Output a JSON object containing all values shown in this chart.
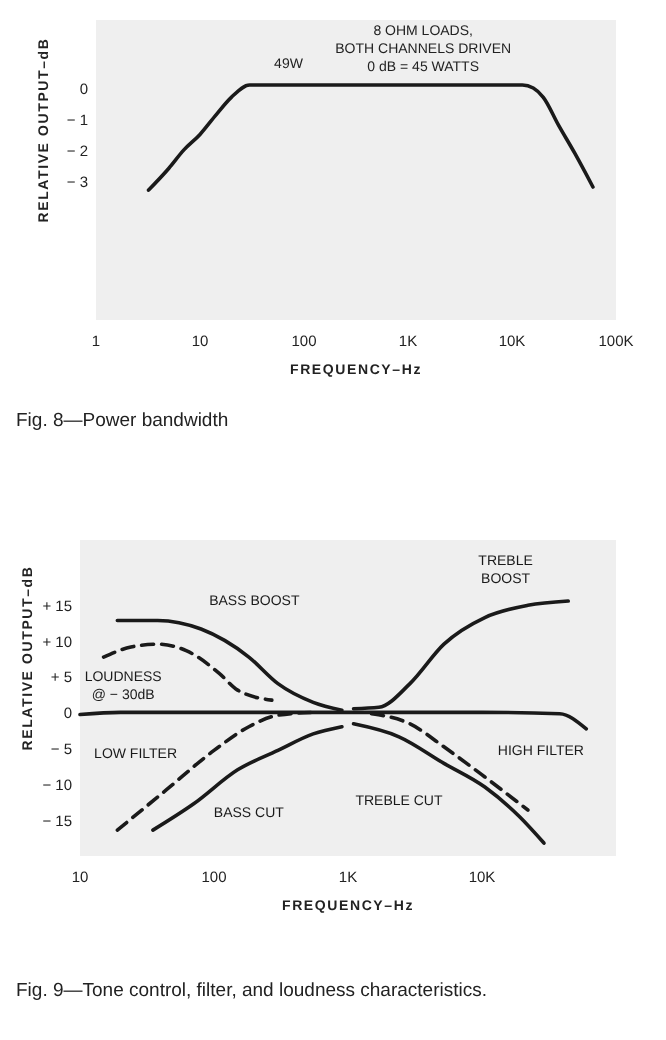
{
  "chart_data": [
    {
      "type": "line",
      "title": "Fig. 8—Power bandwidth",
      "xlabel": "FREQUENCY–Hz",
      "ylabel": "RELATIVE OUTPUT–dB",
      "log": "x",
      "xlim": [
        1,
        100000
      ],
      "ylim": [
        -7.5,
        2.2
      ],
      "xticks": [
        1,
        10,
        100,
        {
          "value": 1000,
          "label": "1K"
        },
        {
          "value": 10000,
          "label": "10K"
        },
        {
          "value": 100000,
          "label": "100K"
        }
      ],
      "yticks": [
        {
          "value": 0,
          "label": "0"
        },
        {
          "value": -1,
          "label": "− 1"
        },
        {
          "value": -2,
          "label": "− 2"
        },
        {
          "value": -3,
          "label": "− 3"
        }
      ],
      "series": [
        {
          "color": "#1a1a1a",
          "line_style": "solid",
          "x": [
            3.2,
            5,
            7,
            10,
            14,
            20,
            30,
            50,
            100,
            1000,
            10000,
            12600,
            16000,
            20000,
            28000,
            40000,
            60000
          ],
          "values": [
            -3.3,
            -2.6,
            -2.0,
            -1.5,
            -0.9,
            -0.3,
            0.1,
            0.1,
            0.1,
            0.1,
            0.1,
            0.1,
            0,
            -0.3,
            -1.2,
            -2.1,
            -3.2
          ]
        }
      ],
      "annotations": [
        "49W",
        "8 OHM LOADS,\nBOTH CHANNELS DRIVEN\n0 dB = 45 WATTS"
      ]
    },
    {
      "type": "line",
      "title": "Fig. 9—Tone control, filter, and loudness characteristics.",
      "xlabel": "FREQUENCY–Hz",
      "ylabel": "RELATIVE OUTPUT–dB",
      "log": "x",
      "xlim": [
        10,
        100000
      ],
      "ylim": [
        -20,
        24
      ],
      "xticks": [
        10,
        100,
        {
          "value": 1000,
          "label": "1K"
        },
        {
          "value": 10000,
          "label": "10K"
        }
      ],
      "yticks": [
        {
          "value": 15,
          "label": "+ 15"
        },
        {
          "value": 10,
          "label": "+ 10"
        },
        {
          "value": 5,
          "label": "+ 5"
        },
        {
          "value": 0,
          "label": "0"
        },
        {
          "value": -5,
          "label": "− 5"
        },
        {
          "value": -10,
          "label": "− 10"
        },
        {
          "value": -15,
          "label": "− 15"
        }
      ],
      "series": [
        {
          "color": "#1a1a1a",
          "line_style": "solid",
          "x": [
            10,
            20,
            100,
            1000,
            10000,
            38000,
            60000
          ],
          "values": [
            -0.3,
            0,
            0,
            0,
            0,
            -0.2,
            -2.3
          ]
        },
        {
          "name": "BASS BOOST",
          "color": "#1a1a1a",
          "line_style": "solid",
          "x": [
            19,
            38,
            80,
            182,
            300,
            550,
            900
          ],
          "values": [
            12.8,
            12.8,
            11.6,
            7.7,
            4,
            1.4,
            0.3
          ]
        },
        {
          "name": "TREBLE\nBOOST",
          "color": "#1a1a1a",
          "line_style": "solid",
          "x": [
            1100,
            1700,
            2900,
            5200,
            10500,
            22000,
            44000
          ],
          "values": [
            0.5,
            0.7,
            4,
            9.5,
            13.2,
            14.9,
            15.5
          ]
        },
        {
          "name": "LOUDNESS\n@ − 30dB",
          "color": "#1a1a1a",
          "line_style": "dashed",
          "x": [
            15,
            24,
            38,
            62,
            110,
            150,
            270
          ],
          "values": [
            7.7,
            9.1,
            9.5,
            8.6,
            5.4,
            3.1,
            1.7
          ]
        },
        {
          "name": "BASS CUT",
          "color": "#1a1a1a",
          "line_style": "solid",
          "x": [
            35,
            71,
            150,
            300,
            550,
            900
          ],
          "values": [
            -16.4,
            -12.7,
            -8,
            -5.3,
            -3,
            -2
          ]
        },
        {
          "name": "LOW FILTER",
          "color": "#1a1a1a",
          "line_style": "dashed",
          "x": [
            19,
            44,
            100,
            182,
            300,
            550
          ],
          "values": [
            -16.4,
            -10.8,
            -5.3,
            -2,
            -0.4,
            0
          ]
        },
        {
          "name": "TREBLE CUT",
          "color": "#1a1a1a",
          "line_style": "solid",
          "x": [
            1100,
            2400,
            5200,
            10500,
            19000,
            29000
          ],
          "values": [
            -1.6,
            -3.4,
            -7.1,
            -10.4,
            -14.5,
            -18.2
          ]
        },
        {
          "name": "HIGH FILTER",
          "color": "#1a1a1a",
          "line_style": "dashed",
          "x": [
            1500,
            2900,
            5200,
            10500,
            22000
          ],
          "values": [
            -0.2,
            -1.6,
            -4.8,
            -9,
            -13.6
          ]
        }
      ]
    }
  ]
}
